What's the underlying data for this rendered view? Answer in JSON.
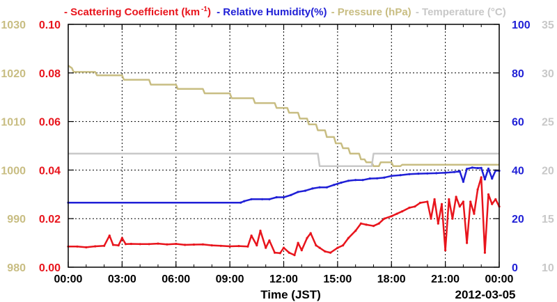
{
  "chart_data": {
    "type": "line",
    "legend": [
      {
        "text": "- Scattering Coefficient (km",
        "sup": "-1",
        "tail": ")",
        "color": "#e8141c"
      },
      {
        "text": " - Relative Humidity(%)",
        "color": "#1f1fd6"
      },
      {
        "text": " - Pressure (hPa)",
        "color": "#c8bd82"
      },
      {
        "text": " - Temperature (°C)",
        "color": "#c8c8c8"
      }
    ],
    "xlabel": "Time (JST)",
    "date_label": "2012-03-05",
    "x_ticks": [
      "00:00",
      "03:00",
      "06:00",
      "09:00",
      "12:00",
      "15:00",
      "18:00",
      "21:00",
      "00:00"
    ],
    "xlim": [
      0,
      24
    ],
    "axes": {
      "pressure": {
        "color": "#c8bd82",
        "ticks": [
          "980",
          "990",
          "1000",
          "1010",
          "1020",
          "1030"
        ],
        "ylim": [
          980,
          1030
        ]
      },
      "scattering": {
        "color": "#e8141c",
        "ticks": [
          "0.00",
          "0.02",
          "0.04",
          "0.06",
          "0.08",
          "0.10"
        ],
        "ylim": [
          0,
          0.1
        ]
      },
      "humidity": {
        "color": "#1f1fd6",
        "ticks": [
          "0",
          "20",
          "40",
          "60",
          "80",
          "100"
        ],
        "ylim": [
          0,
          100
        ]
      },
      "temperature": {
        "color": "#c8c8c8",
        "ticks": [
          "10",
          "15",
          "20",
          "25",
          "30",
          "35"
        ],
        "ylim": [
          10,
          35
        ]
      }
    },
    "series": [
      {
        "key": "pressure",
        "axis": "pressure",
        "color": "#c8bd82",
        "x": [
          0,
          0.2,
          0.3,
          1.5,
          1.6,
          3.0,
          3.1,
          4.5,
          4.6,
          6.0,
          6.1,
          7.5,
          7.6,
          9.0,
          9.1,
          10.3,
          10.4,
          11.5,
          11.6,
          12.2,
          12.3,
          12.8,
          12.9,
          13.3,
          13.4,
          13.8,
          13.9,
          14.3,
          14.4,
          14.8,
          14.9,
          15.2,
          15.3,
          15.6,
          15.7,
          16.2,
          16.3,
          16.5,
          16.6,
          16.9,
          17.0,
          17.3,
          17.4,
          18.0,
          18.1,
          18.5,
          18.6,
          24
        ],
        "y": [
          1021.5,
          1021,
          1020.2,
          1020.2,
          1019.5,
          1019.5,
          1018.6,
          1018.6,
          1017.6,
          1017.6,
          1016.7,
          1016.7,
          1015.8,
          1015.8,
          1014.8,
          1014.8,
          1013.8,
          1013.8,
          1012.8,
          1012.8,
          1011.8,
          1011.8,
          1010.6,
          1010.6,
          1009.4,
          1009.4,
          1008.2,
          1008.2,
          1006.8,
          1006.8,
          1005.5,
          1005.5,
          1004.5,
          1004.5,
          1003.4,
          1003.4,
          1002.2,
          1002.2,
          1001.6,
          1001.6,
          1000.8,
          1000.8,
          1001.6,
          1001.6,
          1000.8,
          1000.8,
          1001.1,
          1001.1
        ]
      },
      {
        "key": "temperature",
        "axis": "temperature",
        "color": "#c8c8c8",
        "x": [
          0,
          13.9,
          14.0,
          16.9,
          17.0,
          24
        ],
        "y": [
          21.7,
          21.7,
          20.4,
          20.4,
          21.7,
          21.7
        ]
      },
      {
        "key": "humidity",
        "axis": "humidity",
        "color": "#1f1fd6",
        "x": [
          0,
          9.6,
          9.8,
          10.2,
          10.8,
          11.2,
          11.6,
          12.0,
          12.4,
          12.8,
          13.2,
          13.6,
          14.0,
          14.4,
          14.8,
          15.2,
          15.6,
          16.0,
          16.4,
          16.8,
          17.2,
          17.6,
          18.0,
          18.5,
          19.0,
          19.5,
          20.0,
          20.5,
          21.0,
          21.5,
          21.8,
          22.0,
          22.2,
          22.5,
          22.8,
          23.0,
          23.2,
          23.4,
          23.6,
          23.8,
          24
        ],
        "y": [
          26.6,
          26.6,
          27.2,
          28,
          28,
          28,
          28.8,
          28.8,
          29.7,
          31,
          31.5,
          32.4,
          32.9,
          32.9,
          33.9,
          34.8,
          35.6,
          35.9,
          35.9,
          36.5,
          36.6,
          36.9,
          37.6,
          37.9,
          38.3,
          38.5,
          38.6,
          38.7,
          38.9,
          39.2,
          39.5,
          35.2,
          40.5,
          41,
          40.8,
          40.9,
          36.2,
          40.6,
          36.5,
          39.8,
          39.7
        ]
      },
      {
        "key": "scattering",
        "axis": "scattering",
        "color": "#e8141c",
        "x": [
          0,
          0.5,
          1.0,
          1.5,
          2.0,
          2.3,
          2.5,
          2.8,
          3.0,
          3.2,
          3.5,
          4.0,
          4.5,
          5.0,
          5.5,
          6.0,
          6.5,
          7.0,
          7.5,
          8.0,
          8.5,
          9.0,
          9.5,
          10.0,
          10.2,
          10.5,
          10.7,
          11.0,
          11.2,
          11.5,
          11.8,
          12.0,
          12.3,
          12.6,
          12.8,
          13.0,
          13.3,
          13.5,
          13.8,
          14.0,
          14.3,
          14.6,
          15.0,
          15.3,
          15.6,
          16.0,
          16.3,
          16.6,
          17.0,
          17.3,
          17.6,
          18.0,
          18.3,
          18.6,
          19.0,
          19.3,
          19.6,
          20.0,
          20.2,
          20.4,
          20.6,
          20.8,
          21.0,
          21.2,
          21.4,
          21.6,
          21.8,
          22.0,
          22.2,
          22.4,
          22.6,
          22.8,
          23.0,
          23.2,
          23.4,
          23.6,
          23.8,
          24
        ],
        "y": [
          0.0085,
          0.0085,
          0.0082,
          0.0086,
          0.0088,
          0.013,
          0.0092,
          0.009,
          0.012,
          0.0095,
          0.0096,
          0.0095,
          0.0095,
          0.0097,
          0.0094,
          0.0096,
          0.0092,
          0.0093,
          0.0094,
          0.009,
          0.0088,
          0.0086,
          0.0087,
          0.0085,
          0.013,
          0.009,
          0.015,
          0.008,
          0.011,
          0.006,
          0.0058,
          0.008,
          0.006,
          0.005,
          0.01,
          0.007,
          0.012,
          0.014,
          0.009,
          0.008,
          0.0065,
          0.006,
          0.008,
          0.009,
          0.012,
          0.015,
          0.018,
          0.0175,
          0.017,
          0.018,
          0.02,
          0.021,
          0.022,
          0.023,
          0.0245,
          0.025,
          0.0265,
          0.027,
          0.02,
          0.028,
          0.018,
          0.026,
          0.007,
          0.028,
          0.02,
          0.029,
          0.025,
          0.027,
          0.01,
          0.027,
          0.022,
          0.032,
          0.037,
          0.006,
          0.03,
          0.026,
          0.028,
          0.025
        ]
      }
    ]
  }
}
